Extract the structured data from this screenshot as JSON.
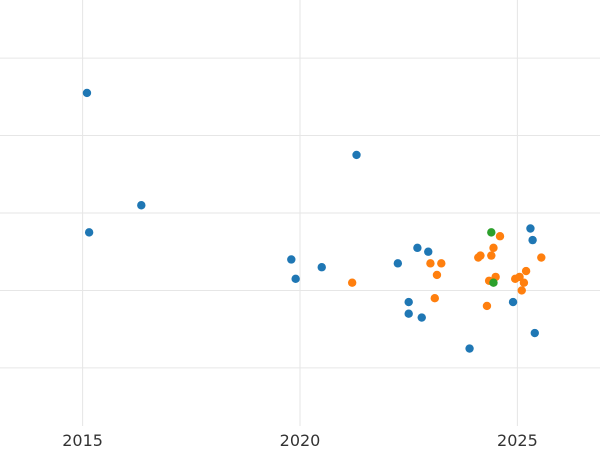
{
  "chart_data": {
    "type": "scatter",
    "title": "",
    "xlabel": "",
    "ylabel": "",
    "xlim": [
      2013.1,
      2026.9
    ],
    "x_ticks": [
      2015,
      2020,
      2025
    ],
    "x_tick_labels": [
      "2015",
      "2020",
      "2025"
    ],
    "ylim": [
      0,
      11
    ],
    "y_gridlines": [
      1.5,
      3.5,
      5.5,
      7.5,
      9.5,
      11.5
    ],
    "grid": true,
    "legend": "none",
    "series": [
      {
        "color": "#1f77b4",
        "points": [
          [
            2015.1,
            8.6
          ],
          [
            2015.15,
            5.0
          ],
          [
            2016.35,
            5.7
          ],
          [
            2019.8,
            4.3
          ],
          [
            2019.9,
            3.8
          ],
          [
            2020.5,
            4.1
          ],
          [
            2021.3,
            7.0
          ],
          [
            2022.25,
            4.2
          ],
          [
            2022.5,
            3.2
          ],
          [
            2022.5,
            2.9
          ],
          [
            2022.7,
            4.6
          ],
          [
            2022.8,
            2.8
          ],
          [
            2022.95,
            4.5
          ],
          [
            2023.9,
            2.0
          ],
          [
            2024.9,
            3.2
          ],
          [
            2025.3,
            5.1
          ],
          [
            2025.35,
            4.8
          ],
          [
            2025.4,
            2.4
          ]
        ]
      },
      {
        "color": "#ff7f0e",
        "points": [
          [
            2021.2,
            3.7
          ],
          [
            2023.0,
            4.2
          ],
          [
            2023.1,
            3.3
          ],
          [
            2023.15,
            3.9
          ],
          [
            2023.25,
            4.2
          ],
          [
            2024.1,
            4.35
          ],
          [
            2024.15,
            4.4
          ],
          [
            2024.3,
            3.1
          ],
          [
            2024.35,
            3.75
          ],
          [
            2024.4,
            4.4
          ],
          [
            2024.45,
            4.6
          ],
          [
            2024.5,
            3.85
          ],
          [
            2024.6,
            4.9
          ],
          [
            2024.95,
            3.8
          ],
          [
            2025.05,
            3.85
          ],
          [
            2025.1,
            3.5
          ],
          [
            2025.15,
            3.7
          ],
          [
            2025.2,
            4.0
          ],
          [
            2025.55,
            4.35
          ]
        ]
      },
      {
        "color": "#2ca02c",
        "points": [
          [
            2024.4,
            5.0
          ],
          [
            2024.45,
            3.7
          ]
        ]
      }
    ]
  }
}
